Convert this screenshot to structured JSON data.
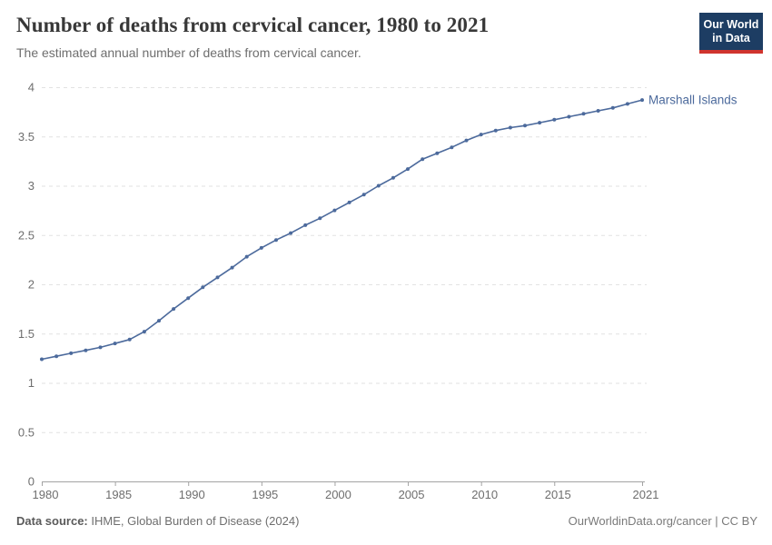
{
  "header": {
    "title": "Number of deaths from cervical cancer, 1980 to 2021",
    "subtitle": "The estimated annual number of deaths from cervical cancer.",
    "logo": {
      "line1": "Our World",
      "line2": "in Data",
      "bg_color": "#1d3d63",
      "accent_color": "#d0342e"
    }
  },
  "chart_data": {
    "type": "line",
    "title": "Number of deaths from cervical cancer, 1980 to 2021",
    "x": [
      1980,
      1981,
      1982,
      1983,
      1984,
      1985,
      1986,
      1987,
      1988,
      1989,
      1990,
      1991,
      1992,
      1993,
      1994,
      1995,
      1996,
      1997,
      1998,
      1999,
      2000,
      2001,
      2002,
      2003,
      2004,
      2005,
      2006,
      2007,
      2008,
      2009,
      2010,
      2011,
      2012,
      2013,
      2014,
      2015,
      2016,
      2017,
      2018,
      2019,
      2020,
      2021
    ],
    "series": [
      {
        "name": "Marshall Islands",
        "color": "#4c6a9c",
        "values": [
          1.24,
          1.27,
          1.3,
          1.33,
          1.36,
          1.4,
          1.44,
          1.52,
          1.63,
          1.75,
          1.86,
          1.97,
          2.07,
          2.17,
          2.28,
          2.37,
          2.45,
          2.52,
          2.6,
          2.67,
          2.75,
          2.83,
          2.91,
          3.0,
          3.08,
          3.17,
          3.27,
          3.33,
          3.39,
          3.46,
          3.52,
          3.56,
          3.59,
          3.61,
          3.64,
          3.67,
          3.7,
          3.73,
          3.76,
          3.79,
          3.83,
          3.87
        ]
      }
    ],
    "xlabel": "",
    "ylabel": "",
    "ylim": [
      0,
      4
    ],
    "yticks": [
      0,
      0.5,
      1,
      1.5,
      2,
      2.5,
      3,
      3.5,
      4
    ],
    "ytick_labels": [
      "0",
      "0.5",
      "1",
      "1.5",
      "2",
      "2.5",
      "3",
      "3.5",
      "4"
    ],
    "xticks": [
      1980,
      1985,
      1990,
      1995,
      2000,
      2005,
      2010,
      2015,
      2021
    ],
    "xtick_labels": [
      "1980",
      "1985",
      "1990",
      "1995",
      "2000",
      "2005",
      "2010",
      "2015",
      "2021"
    ],
    "grid": "horizontal-dashed",
    "legend_position": "end-of-line-label",
    "colors": {
      "gridline": "#e2e2e2",
      "axis": "#a3a3a3",
      "tick_label": "#6e6e6e"
    }
  },
  "footer": {
    "source_label": "Data source:",
    "source_text": " IHME, Global Burden of Disease (2024)",
    "license_text": "OurWorldinData.org/cancer | CC BY"
  }
}
